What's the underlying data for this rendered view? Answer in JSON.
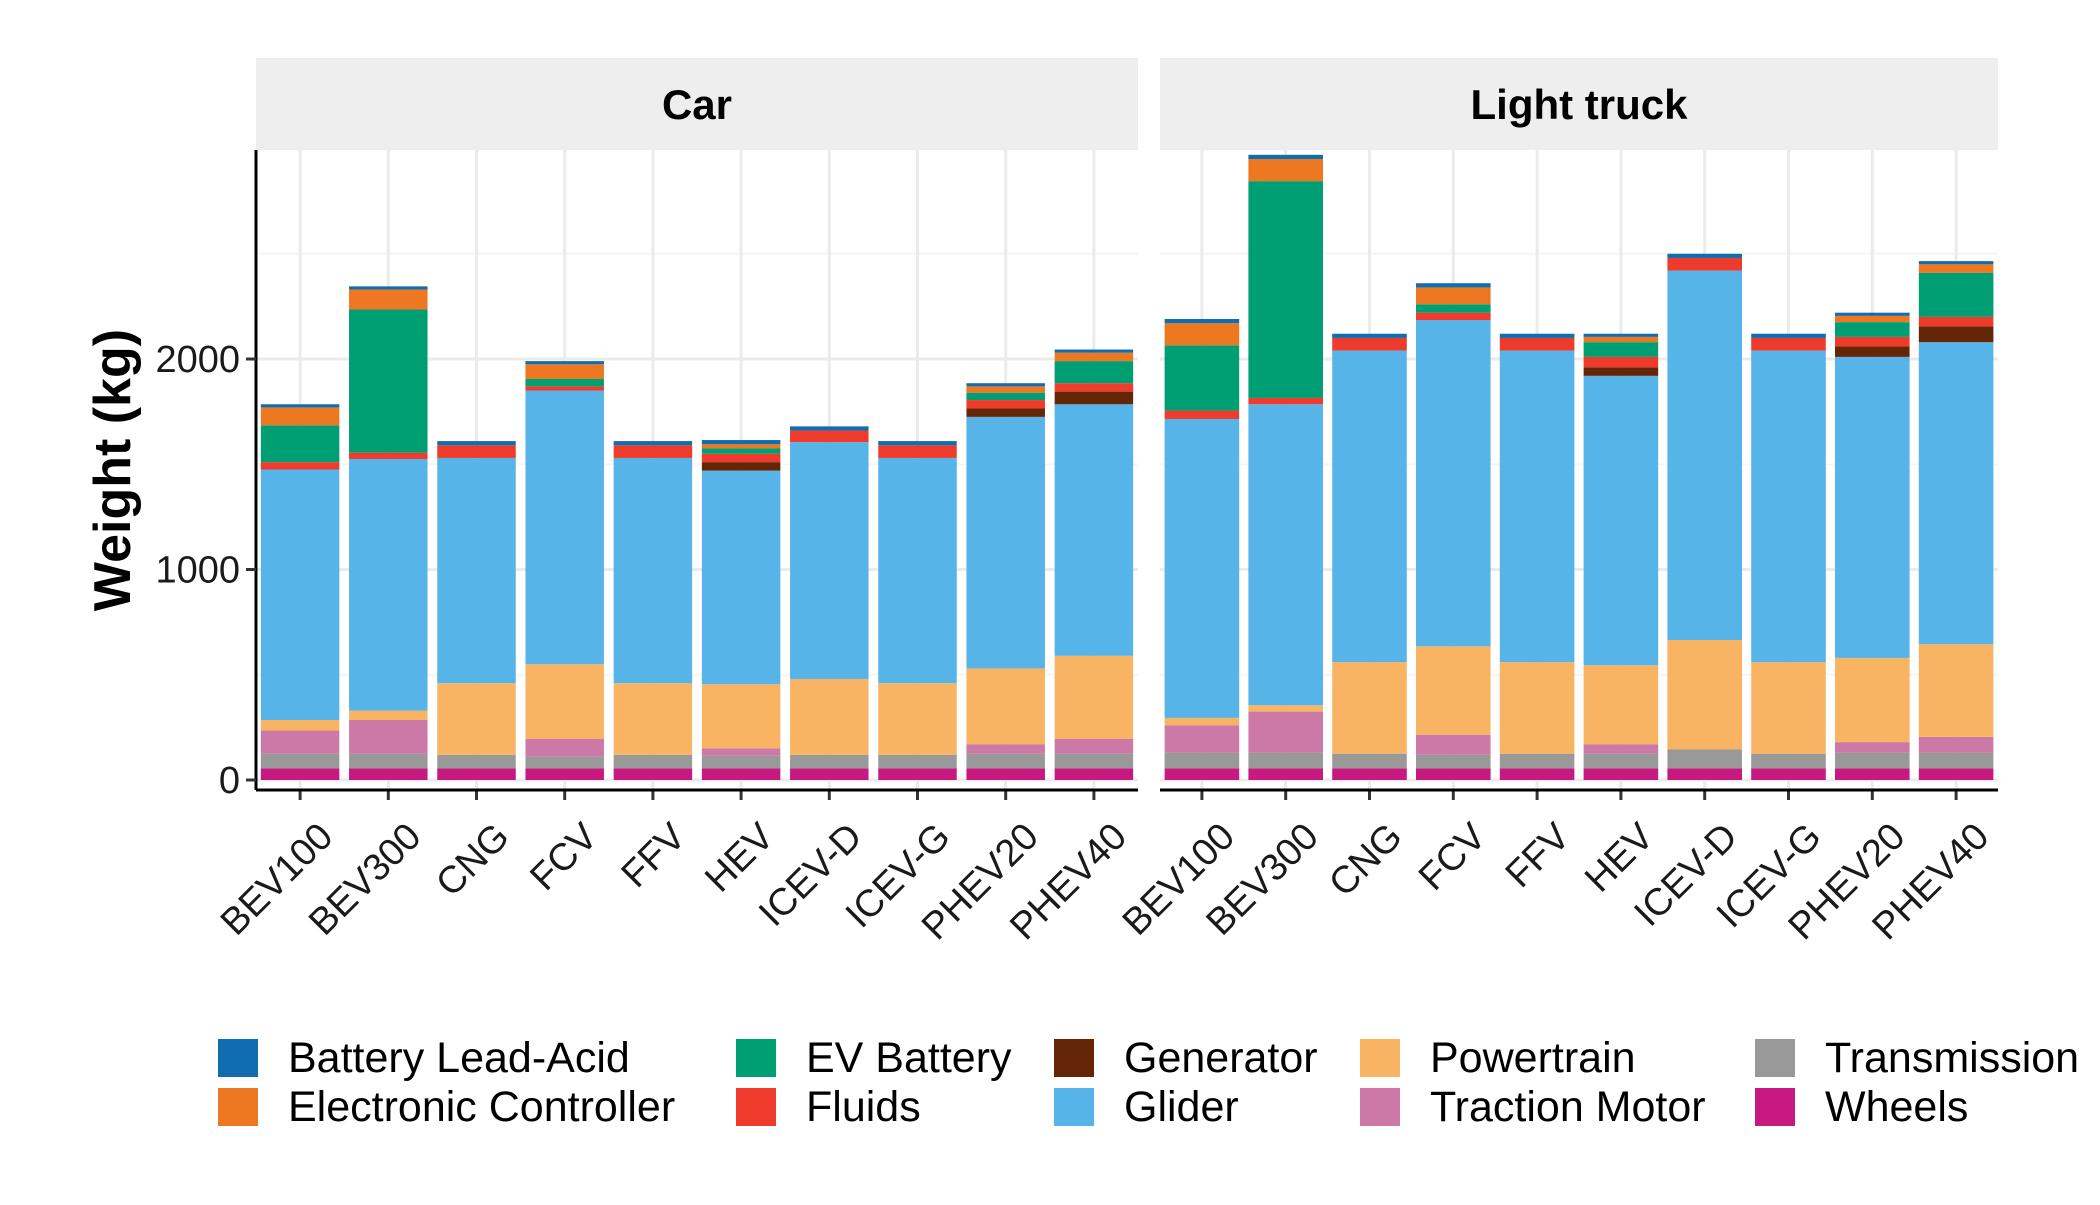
{
  "chart_data": {
    "type": "bar",
    "stacked": true,
    "ylabel": "Weight (kg)",
    "xlabel": "",
    "ylim": [
      0,
      3000
    ],
    "y_ticks": [
      0,
      1000,
      2000
    ],
    "grid": true,
    "legend_position": "bottom",
    "categories": [
      "BEV100",
      "BEV300",
      "CNG",
      "FCV",
      "FFV",
      "HEV",
      "ICEV-D",
      "ICEV-G",
      "PHEV20",
      "PHEV40"
    ],
    "stack_order_bottom_to_top": [
      "Wheels",
      "Transmission",
      "Traction Motor",
      "Powertrain",
      "Glider",
      "Generator",
      "Fluids",
      "EV Battery",
      "Electronic Controller",
      "Battery Lead-Acid"
    ],
    "legend": [
      {
        "name": "Battery Lead-Acid",
        "color": "#0F6DB0"
      },
      {
        "name": "Electronic Controller",
        "color": "#EE7722"
      },
      {
        "name": "EV Battery",
        "color": "#009E73"
      },
      {
        "name": "Fluids",
        "color": "#EE3B2C"
      },
      {
        "name": "Generator",
        "color": "#652608"
      },
      {
        "name": "Glider",
        "color": "#56B4E9"
      },
      {
        "name": "Powertrain",
        "color": "#F9B463"
      },
      {
        "name": "Traction Motor",
        "color": "#CC79A7"
      },
      {
        "name": "Transmission",
        "color": "#999999"
      },
      {
        "name": "Wheels",
        "color": "#C7197F"
      }
    ],
    "facets": [
      {
        "title": "Car",
        "series": [
          {
            "name": "Wheels",
            "values": [
              55,
              55,
              55,
              55,
              55,
              55,
              55,
              55,
              55,
              55
            ]
          },
          {
            "name": "Transmission",
            "values": [
              70,
              70,
              65,
              55,
              65,
              60,
              65,
              65,
              70,
              70
            ]
          },
          {
            "name": "Traction Motor",
            "values": [
              110,
              160,
              0,
              85,
              0,
              35,
              0,
              0,
              45,
              70
            ]
          },
          {
            "name": "Powertrain",
            "values": [
              50,
              45,
              340,
              355,
              340,
              305,
              360,
              340,
              360,
              395
            ]
          },
          {
            "name": "Glider",
            "values": [
              1190,
              1195,
              1070,
              1300,
              1070,
              1015,
              1125,
              1070,
              1195,
              1195
            ]
          },
          {
            "name": "Generator",
            "values": [
              0,
              0,
              0,
              0,
              0,
              40,
              0,
              0,
              40,
              60
            ]
          },
          {
            "name": "Fluids",
            "values": [
              35,
              30,
              60,
              20,
              60,
              40,
              55,
              60,
              40,
              40
            ]
          },
          {
            "name": "EV Battery",
            "values": [
              175,
              680,
              0,
              35,
              0,
              25,
              0,
              0,
              35,
              105
            ]
          },
          {
            "name": "Electronic Controller",
            "values": [
              85,
              95,
              0,
              70,
              0,
              20,
              0,
              0,
              30,
              40
            ]
          },
          {
            "name": "Battery Lead-Acid",
            "values": [
              15,
              15,
              20,
              15,
              20,
              20,
              20,
              20,
              15,
              15
            ]
          }
        ]
      },
      {
        "title": "Light truck",
        "series": [
          {
            "name": "Wheels",
            "values": [
              55,
              55,
              55,
              55,
              55,
              55,
              55,
              55,
              55,
              55
            ]
          },
          {
            "name": "Transmission",
            "values": [
              75,
              75,
              70,
              65,
              70,
              70,
              90,
              70,
              75,
              75
            ]
          },
          {
            "name": "Traction Motor",
            "values": [
              130,
              195,
              0,
              95,
              0,
              45,
              0,
              0,
              50,
              75
            ]
          },
          {
            "name": "Powertrain",
            "values": [
              35,
              30,
              435,
              420,
              435,
              375,
              520,
              435,
              400,
              440
            ]
          },
          {
            "name": "Glider",
            "values": [
              1420,
              1430,
              1480,
              1550,
              1480,
              1375,
              1755,
              1480,
              1430,
              1435
            ]
          },
          {
            "name": "Generator",
            "values": [
              0,
              0,
              0,
              0,
              0,
              40,
              0,
              0,
              50,
              75
            ]
          },
          {
            "name": "Fluids",
            "values": [
              40,
              30,
              60,
              35,
              60,
              50,
              60,
              60,
              45,
              45
            ]
          },
          {
            "name": "EV Battery",
            "values": [
              310,
              1030,
              0,
              40,
              0,
              70,
              0,
              0,
              70,
              210
            ]
          },
          {
            "name": "Electronic Controller",
            "values": [
              105,
              105,
              0,
              80,
              0,
              25,
              0,
              0,
              30,
              40
            ]
          },
          {
            "name": "Battery Lead-Acid",
            "values": [
              20,
              20,
              20,
              20,
              20,
              15,
              20,
              20,
              15,
              15
            ]
          }
        ]
      }
    ]
  }
}
